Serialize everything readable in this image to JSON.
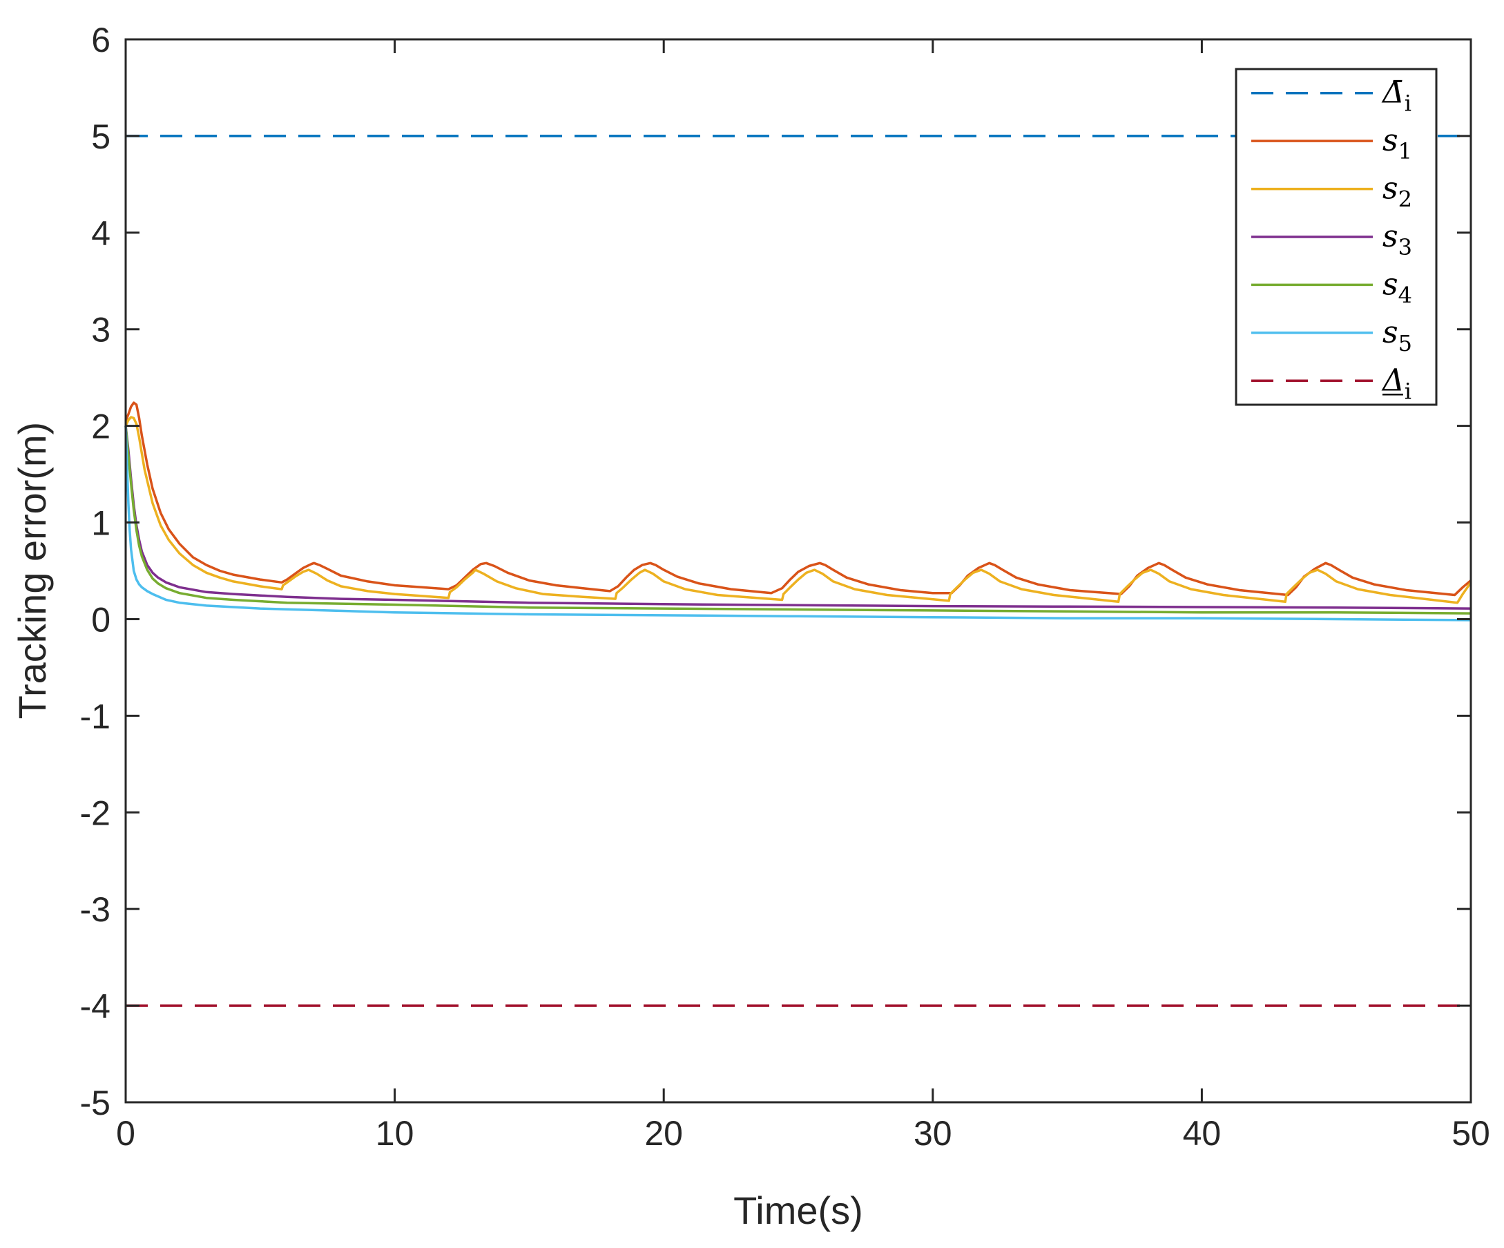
{
  "chart_data": {
    "type": "line",
    "title": "",
    "xlabel": "Time(s)",
    "ylabel": "Tracking error(m)",
    "xlim": [
      0,
      50
    ],
    "ylim": [
      -5,
      6
    ],
    "xticks": [
      0,
      10,
      20,
      30,
      40,
      50
    ],
    "yticks": [
      -5,
      -4,
      -3,
      -2,
      -1,
      0,
      1,
      2,
      3,
      4,
      5,
      6
    ],
    "xtick_labels": [
      "0",
      "10",
      "20",
      "30",
      "40",
      "50"
    ],
    "ytick_labels": [
      "-5",
      "-4",
      "-3",
      "-2",
      "-1",
      "0",
      "1",
      "2",
      "3",
      "4",
      "5",
      "6"
    ],
    "grid": false,
    "legend_position": "top-right",
    "series": [
      {
        "name": "Δ̄_i",
        "legend_base": "Δ̄",
        "legend_sub": "i",
        "style": "dashed",
        "color": "#0072BD",
        "x": [
          0,
          50
        ],
        "y": [
          5,
          5
        ]
      },
      {
        "name": "s_1",
        "legend_base": "s",
        "legend_sub": "1",
        "style": "solid",
        "color": "#D95319",
        "x": [
          0,
          0.1,
          0.2,
          0.3,
          0.4,
          0.5,
          0.6,
          0.8,
          1.0,
          1.3,
          1.6,
          2.0,
          2.5,
          3.0,
          3.5,
          4.0,
          5.0,
          5.8,
          6.0,
          6.3,
          6.6,
          6.9,
          7.0,
          7.2,
          7.5,
          8.0,
          9.0,
          10.0,
          11.0,
          12.0,
          12.3,
          12.6,
          12.9,
          13.2,
          13.4,
          13.7,
          14.2,
          15.0,
          16.0,
          17.0,
          18.0,
          18.3,
          18.6,
          18.9,
          19.2,
          19.5,
          19.7,
          20.0,
          20.5,
          21.3,
          22.5,
          24.0,
          24.4,
          24.7,
          25.0,
          25.4,
          25.8,
          26.0,
          26.3,
          26.8,
          27.6,
          28.8,
          30.0,
          30.7,
          31.0,
          31.3,
          31.7,
          32.1,
          32.3,
          32.6,
          33.1,
          33.9,
          35.1,
          37.0,
          37.3,
          37.6,
          38.0,
          38.4,
          38.6,
          38.9,
          39.4,
          40.2,
          41.4,
          43.2,
          43.5,
          43.8,
          44.2,
          44.6,
          44.8,
          45.1,
          45.6,
          46.4,
          47.6,
          49.4,
          49.7,
          50.0
        ],
        "y": [
          2.05,
          2.12,
          2.2,
          2.24,
          2.22,
          2.08,
          1.9,
          1.6,
          1.35,
          1.1,
          0.93,
          0.78,
          0.64,
          0.56,
          0.5,
          0.46,
          0.41,
          0.38,
          0.41,
          0.47,
          0.53,
          0.57,
          0.58,
          0.56,
          0.52,
          0.45,
          0.39,
          0.35,
          0.33,
          0.31,
          0.35,
          0.43,
          0.51,
          0.57,
          0.58,
          0.55,
          0.48,
          0.4,
          0.35,
          0.32,
          0.29,
          0.34,
          0.43,
          0.51,
          0.56,
          0.58,
          0.56,
          0.51,
          0.44,
          0.37,
          0.31,
          0.27,
          0.32,
          0.41,
          0.49,
          0.55,
          0.58,
          0.56,
          0.51,
          0.43,
          0.36,
          0.3,
          0.27,
          0.27,
          0.35,
          0.45,
          0.53,
          0.58,
          0.56,
          0.51,
          0.43,
          0.36,
          0.3,
          0.26,
          0.34,
          0.45,
          0.53,
          0.58,
          0.56,
          0.51,
          0.43,
          0.36,
          0.3,
          0.25,
          0.33,
          0.44,
          0.52,
          0.58,
          0.56,
          0.51,
          0.43,
          0.36,
          0.3,
          0.25,
          0.33,
          0.4
        ]
      },
      {
        "name": "s_2",
        "legend_base": "s",
        "legend_sub": "2",
        "style": "solid",
        "color": "#EDB120",
        "x": [
          0,
          0.1,
          0.2,
          0.3,
          0.4,
          0.5,
          0.7,
          1.0,
          1.3,
          1.6,
          2.0,
          2.5,
          3.0,
          3.5,
          4.0,
          5.0,
          5.8,
          5.85,
          6.0,
          6.3,
          6.6,
          6.8,
          7.1,
          7.5,
          8.0,
          9.0,
          10.0,
          11.0,
          12.0,
          12.05,
          12.3,
          12.6,
          12.9,
          13.0,
          13.3,
          13.8,
          14.5,
          15.5,
          17.0,
          18.2,
          18.25,
          18.5,
          18.8,
          19.1,
          19.3,
          19.6,
          20.0,
          20.8,
          22.0,
          24.4,
          24.45,
          24.7,
          25.0,
          25.3,
          25.6,
          25.9,
          26.3,
          27.1,
          28.3,
          30.6,
          30.65,
          30.9,
          31.2,
          31.5,
          31.8,
          32.1,
          32.5,
          33.3,
          34.5,
          36.9,
          36.95,
          37.2,
          37.5,
          37.8,
          38.1,
          38.4,
          38.8,
          39.6,
          40.8,
          43.1,
          43.15,
          43.4,
          43.7,
          44.0,
          44.3,
          44.6,
          45.0,
          45.8,
          47.0,
          49.5,
          49.7,
          50.0
        ],
        "y": [
          2.0,
          2.06,
          2.09,
          2.08,
          2.02,
          1.88,
          1.55,
          1.2,
          0.97,
          0.82,
          0.68,
          0.56,
          0.48,
          0.43,
          0.39,
          0.34,
          0.31,
          0.35,
          0.38,
          0.44,
          0.49,
          0.51,
          0.47,
          0.4,
          0.34,
          0.29,
          0.26,
          0.24,
          0.22,
          0.28,
          0.33,
          0.41,
          0.48,
          0.51,
          0.47,
          0.39,
          0.32,
          0.26,
          0.23,
          0.21,
          0.27,
          0.33,
          0.41,
          0.48,
          0.51,
          0.47,
          0.39,
          0.31,
          0.25,
          0.2,
          0.26,
          0.33,
          0.41,
          0.48,
          0.51,
          0.47,
          0.39,
          0.31,
          0.25,
          0.19,
          0.26,
          0.33,
          0.41,
          0.48,
          0.51,
          0.47,
          0.39,
          0.31,
          0.25,
          0.18,
          0.26,
          0.33,
          0.41,
          0.48,
          0.51,
          0.47,
          0.39,
          0.31,
          0.25,
          0.18,
          0.26,
          0.33,
          0.41,
          0.48,
          0.51,
          0.47,
          0.39,
          0.31,
          0.25,
          0.17,
          0.26,
          0.38
        ]
      },
      {
        "name": "s_3",
        "legend_base": "s",
        "legend_sub": "3",
        "style": "solid",
        "color": "#7E2F8E",
        "x": [
          0,
          0.1,
          0.2,
          0.3,
          0.4,
          0.5,
          0.6,
          0.8,
          1.0,
          1.2,
          1.5,
          2.0,
          3.0,
          4.0,
          6.0,
          8.0,
          10.0,
          15.0,
          20.0,
          25.0,
          30.0,
          35.0,
          40.0,
          45.0,
          50.0
        ],
        "y": [
          2.0,
          1.75,
          1.45,
          1.18,
          0.97,
          0.82,
          0.7,
          0.56,
          0.48,
          0.43,
          0.38,
          0.33,
          0.28,
          0.26,
          0.23,
          0.21,
          0.2,
          0.17,
          0.155,
          0.145,
          0.135,
          0.13,
          0.125,
          0.12,
          0.11
        ]
      },
      {
        "name": "s_4",
        "legend_base": "s",
        "legend_sub": "4",
        "style": "solid",
        "color": "#77AC30",
        "x": [
          0,
          0.1,
          0.2,
          0.3,
          0.4,
          0.5,
          0.6,
          0.8,
          1.0,
          1.2,
          1.5,
          2.0,
          3.0,
          4.0,
          6.0,
          8.0,
          10.0,
          15.0,
          20.0,
          25.0,
          30.0,
          35.0,
          40.0,
          45.0,
          50.0
        ],
        "y": [
          2.0,
          1.7,
          1.4,
          1.13,
          0.92,
          0.76,
          0.65,
          0.51,
          0.42,
          0.37,
          0.32,
          0.27,
          0.22,
          0.2,
          0.17,
          0.16,
          0.15,
          0.12,
          0.11,
          0.1,
          0.09,
          0.08,
          0.07,
          0.07,
          0.06
        ]
      },
      {
        "name": "s_5",
        "legend_base": "s",
        "legend_sub": "5",
        "style": "solid",
        "color": "#4DBEEE",
        "x": [
          0,
          0.05,
          0.1,
          0.15,
          0.2,
          0.3,
          0.4,
          0.5,
          0.6,
          0.8,
          1.0,
          1.5,
          2.0,
          3.0,
          5.0,
          10.0,
          15.0,
          20.0,
          25.0,
          30.0,
          35.0,
          40.0,
          45.0,
          50.0
        ],
        "y": [
          2.0,
          1.6,
          1.2,
          0.92,
          0.72,
          0.5,
          0.41,
          0.36,
          0.33,
          0.29,
          0.26,
          0.2,
          0.17,
          0.14,
          0.11,
          0.07,
          0.05,
          0.04,
          0.03,
          0.02,
          0.01,
          0.01,
          0.0,
          -0.01
        ]
      },
      {
        "name": "Δ_i",
        "legend_base": "Δ",
        "legend_sub": "i",
        "style": "dashed",
        "underline": true,
        "color": "#A2142F",
        "x": [
          0,
          50
        ],
        "y": [
          -4,
          -4
        ]
      }
    ]
  }
}
